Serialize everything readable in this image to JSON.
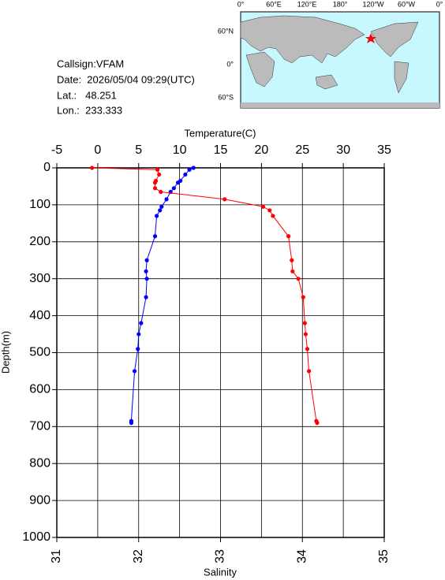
{
  "info": {
    "lines": [
      "Callsign:VFAM",
      "Date:  2026/05/04 09:29(UTC)",
      "Lat.:   48.251",
      "Lon.:  233.333"
    ]
  },
  "map": {
    "lon_labels": [
      "0°",
      "60°E",
      "120°E",
      "180°",
      "120°W",
      "60°W",
      "0°"
    ],
    "lat_labels": [
      "60°N",
      "0°",
      "60°S"
    ]
  },
  "chart_data": {
    "type": "line",
    "x2_label": "Temperature(C)",
    "x_label": "Salinity",
    "y_label": "Depth(m)",
    "depth": [
      0,
      5,
      18,
      35,
      40,
      55,
      65,
      85,
      105,
      115,
      130,
      185,
      250,
      280,
      300,
      350,
      420,
      450,
      490,
      550,
      685,
      690
    ],
    "series": [
      {
        "axis": "x2",
        "color": "#0000ff",
        "values": [
          11.7,
          11.2,
          10.7,
          10.1,
          9.8,
          9.3,
          8.9,
          8.4,
          7.8,
          7.6,
          7.2,
          7.0,
          6.0,
          5.9,
          6.0,
          5.9,
          5.3,
          5.0,
          4.9,
          4.5,
          4.1,
          4.1
        ]
      },
      {
        "axis": "x",
        "color": "#ff0000",
        "values": [
          31.43,
          32.23,
          32.25,
          32.21,
          32.2,
          32.2,
          32.27,
          33.05,
          33.52,
          33.6,
          33.64,
          33.83,
          33.87,
          33.88,
          33.95,
          34.01,
          34.03,
          34.04,
          34.06,
          34.08,
          34.17,
          34.18
        ]
      }
    ],
    "xlim": [
      31,
      35
    ],
    "xticks": [
      31,
      32,
      33,
      34,
      35
    ],
    "x2lim": [
      -5,
      35
    ],
    "x2ticks": [
      -5,
      0,
      5,
      10,
      15,
      20,
      25,
      30,
      35
    ],
    "ylim": [
      0,
      1000
    ],
    "yticks": [
      0,
      100,
      200,
      300,
      400,
      500,
      600,
      700,
      800,
      900,
      1000
    ],
    "grid": true
  }
}
